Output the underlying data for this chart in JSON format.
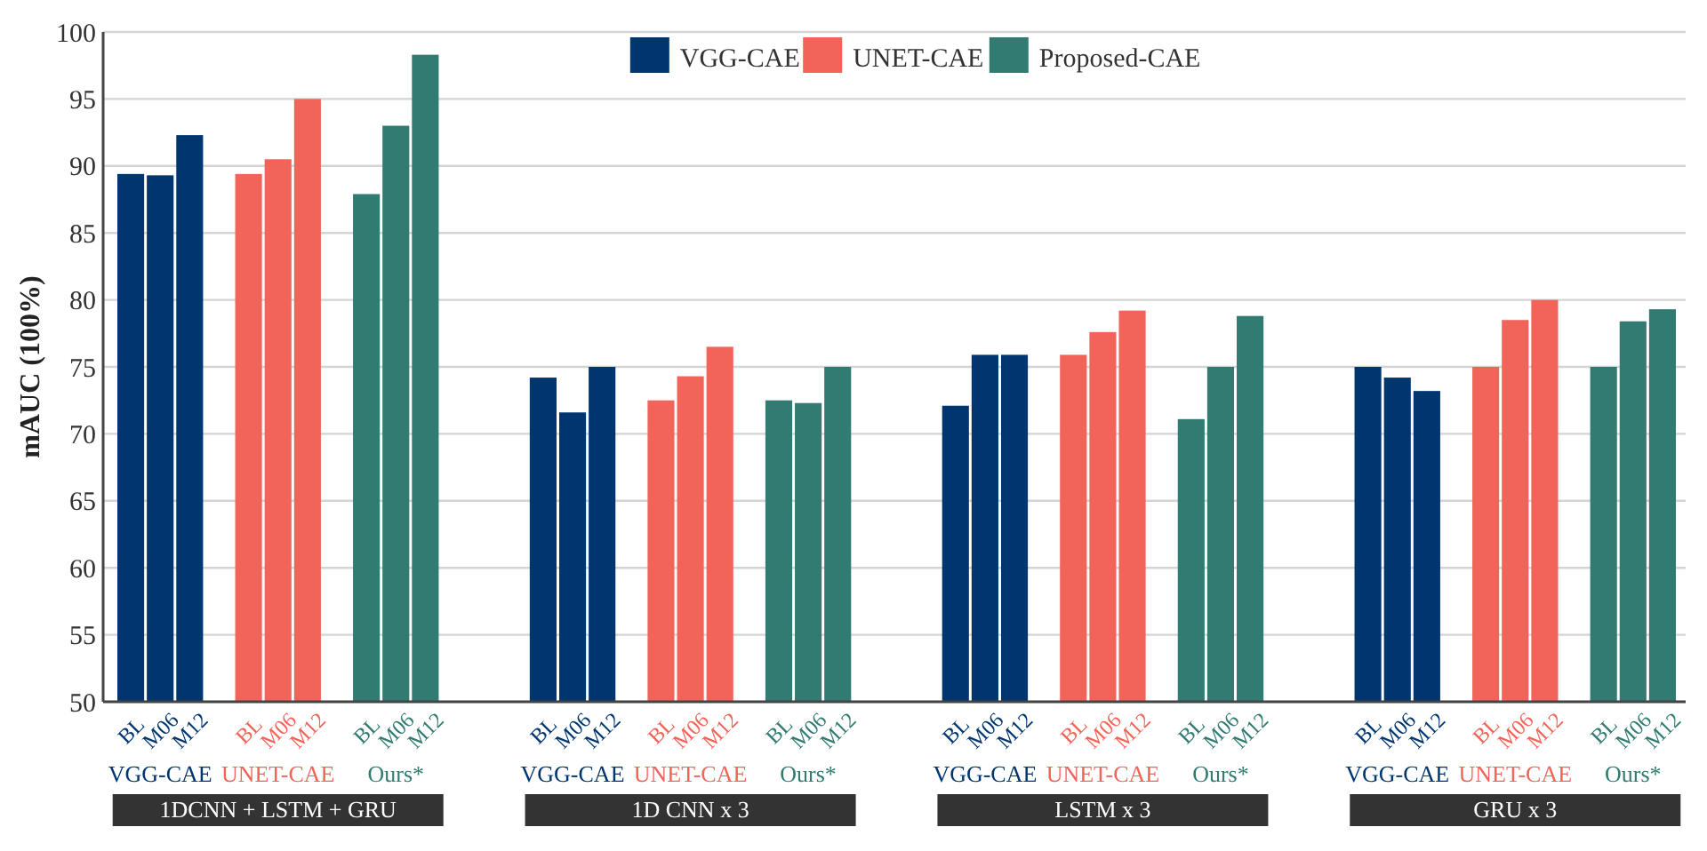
{
  "chart_data": {
    "type": "bar",
    "ylabel": "mAUC (100%)",
    "categories": [
      "BL",
      "M06",
      "M12",
      null,
      "BL",
      "M06",
      "M12",
      null,
      "BL",
      "M06",
      "M12",
      null,
      null,
      null,
      "BL",
      "M06",
      "M12",
      null,
      "BL",
      "M06",
      "M12",
      null,
      "BL",
      "M06",
      "M12",
      null,
      null,
      null,
      "BL",
      "M06",
      "M12",
      null,
      "BL",
      "M06",
      "M12",
      null,
      "BL",
      "M06",
      "M12",
      null,
      null,
      null,
      "BL",
      "M06",
      "M12",
      null,
      "BL",
      "M06",
      "M12",
      null,
      "BL",
      "M06",
      "M12"
    ],
    "series": [
      {
        "name": "VGG-CAE",
        "color": "#003670",
        "values": [
          89.4,
          89.3,
          92.3,
          null,
          null,
          null,
          null,
          null,
          null,
          null,
          null,
          null,
          null,
          null,
          74.2,
          71.6,
          75.0,
          null,
          null,
          null,
          null,
          null,
          null,
          null,
          null,
          null,
          null,
          null,
          72.1,
          75.9,
          75.9,
          null,
          null,
          null,
          null,
          null,
          null,
          null,
          null,
          null,
          null,
          null,
          75.0,
          74.2,
          73.2,
          null,
          null,
          null,
          null,
          null,
          null,
          null,
          null
        ]
      },
      {
        "name": "UNET-CAE",
        "color": "#f2645a",
        "values": [
          null,
          null,
          null,
          null,
          89.4,
          90.5,
          95.0,
          null,
          null,
          null,
          null,
          null,
          null,
          null,
          null,
          null,
          null,
          null,
          72.5,
          74.3,
          76.5,
          null,
          null,
          null,
          null,
          null,
          null,
          null,
          null,
          null,
          null,
          null,
          75.9,
          77.6,
          79.2,
          null,
          null,
          null,
          null,
          null,
          null,
          null,
          null,
          null,
          null,
          null,
          75.0,
          78.5,
          80.0,
          null,
          null,
          null,
          null
        ]
      },
      {
        "name": "Proposed-CAE",
        "color": "#317b72",
        "values": [
          null,
          null,
          null,
          null,
          null,
          null,
          null,
          null,
          87.9,
          93.0,
          98.3,
          null,
          null,
          null,
          null,
          null,
          null,
          null,
          null,
          null,
          null,
          null,
          72.5,
          72.3,
          75.0,
          null,
          null,
          null,
          null,
          null,
          null,
          null,
          null,
          null,
          null,
          null,
          71.1,
          75.0,
          78.8,
          null,
          null,
          null,
          null,
          null,
          null,
          null,
          null,
          null,
          null,
          null,
          75.0,
          78.4,
          79.3
        ]
      }
    ],
    "annotations": [
      "VGG-CAE",
      "UNET-CAE",
      "Ours*",
      "1DCNN + LSTM + GRU",
      "VGG-CAE",
      "UNET-CAE",
      "Ours*",
      "1D CNN x 3",
      "VGG-CAE",
      "UNET-CAE",
      "Ours*",
      "LSTM x 3",
      "VGG-CAE",
      "UNET-CAE",
      "Ours*",
      "GRU x 3"
    ],
    "ylim": [
      50,
      100
    ],
    "yticks": [
      50,
      55,
      60,
      65,
      70,
      75,
      80,
      85,
      90,
      95,
      100
    ],
    "grid": "y",
    "legend": "top"
  }
}
